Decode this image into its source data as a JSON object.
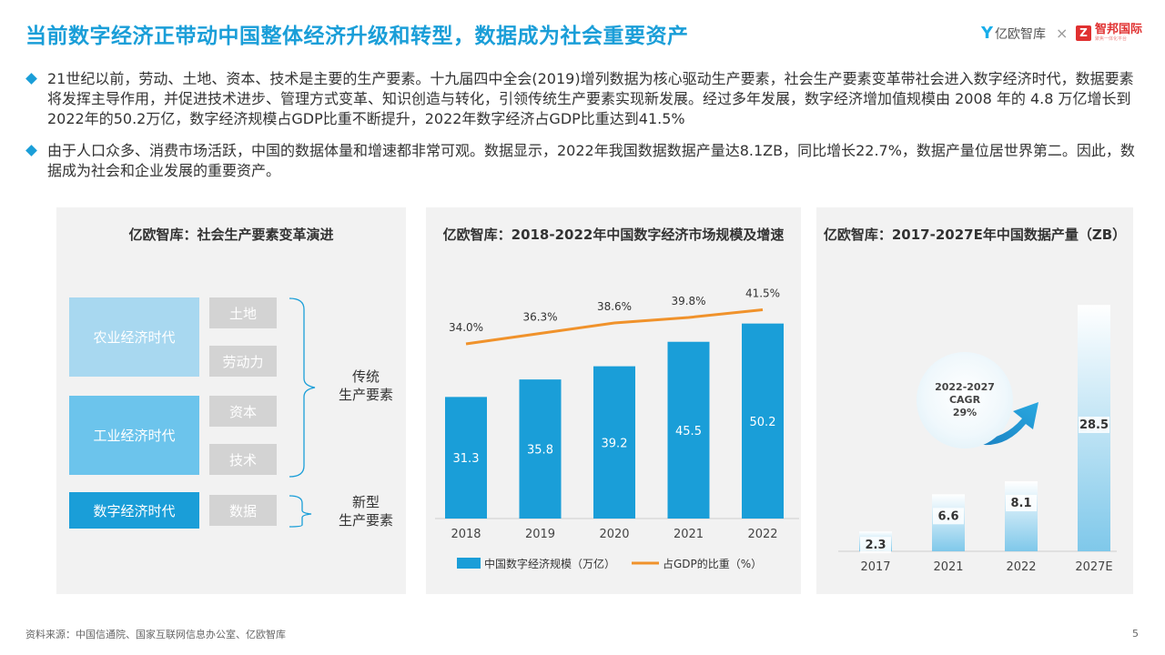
{
  "header": {
    "title": "当前数字经济正带动中国整体经济升级和转型，数据成为社会重要资产",
    "logo_left_mark": "Y",
    "logo_left_text": "亿欧智库",
    "logo_separator": "×",
    "logo_right_mark": "Z",
    "logo_right_text": "智邦国际",
    "logo_right_sub": "聚焦一体化平台"
  },
  "bullets": [
    "21世纪以前，劳动、土地、资本、技术是主要的生产要素。十九届四中全会(2019)增列数据为核心驱动生产要素，社会生产要素变革带社会进入数字经济时代，数据要素将发挥主导作用，并促进技术进步、管理方式变革、知识创造与转化，引领传统生产要素实现新发展。经过多年发展，数字经济增加值规模由 2008 年的 4.8 万亿增长到 2022年的50.2万亿，数字经济规模占GDP比重不断提升，2022年数字经济占GDP比重达到41.5%",
    "由于人口众多、消费市场活跃，中国的数据体量和增速都非常可观。数据显示，2022年我国数据数据产量达8.1ZB，同比增长22.7%，数据产量位居世界第二。因此，数据成为社会和企业发展的重要资产。"
  ],
  "diagram": {
    "title": "亿欧智库：社会生产要素变革演进",
    "eras": [
      "农业经济时代",
      "工业经济时代",
      "数字经济时代"
    ],
    "factors": [
      "土地",
      "劳动力",
      "资本",
      "技术",
      "数据"
    ],
    "traditional_label": [
      "传统",
      "生产要素"
    ],
    "new_label": [
      "新型",
      "生产要素"
    ],
    "colors": {
      "era_light": "#a8d8f0",
      "era_mid": "#6cc4ec",
      "era_dark": "#1a9ed8",
      "factor": "#d3d3d3"
    }
  },
  "chart_data": [
    {
      "type": "bar",
      "title": "亿欧智库：2018-2022年中国数字经济市场规模及增速",
      "categories": [
        "2018",
        "2019",
        "2020",
        "2021",
        "2022"
      ],
      "series": [
        {
          "name": "中国数字经济规模（万亿）",
          "type": "bar",
          "color": "#1a9ed8",
          "values": [
            31.3,
            35.8,
            39.2,
            45.5,
            50.2
          ]
        },
        {
          "name": "占GDP的比重（%）",
          "type": "line",
          "color": "#f0922b",
          "values": [
            34.0,
            36.3,
            38.6,
            39.8,
            41.5
          ],
          "labels": [
            "34.0%",
            "36.3%",
            "38.6%",
            "39.8%",
            "41.5%"
          ]
        }
      ]
    },
    {
      "type": "bar",
      "title": "亿欧智库：2017-2027E年中国数据产量（ZB）",
      "categories": [
        "2017",
        "2021",
        "2022",
        "2027E"
      ],
      "values": [
        2.3,
        6.6,
        8.1,
        28.5
      ],
      "bar_color": "#9fd6ef",
      "annotation": [
        "2022-2027",
        "CAGR",
        "29%"
      ]
    }
  ],
  "footer": {
    "source": "资料来源：中国信通院、国家互联网信息办公室、亿欧智库",
    "page": "5"
  }
}
